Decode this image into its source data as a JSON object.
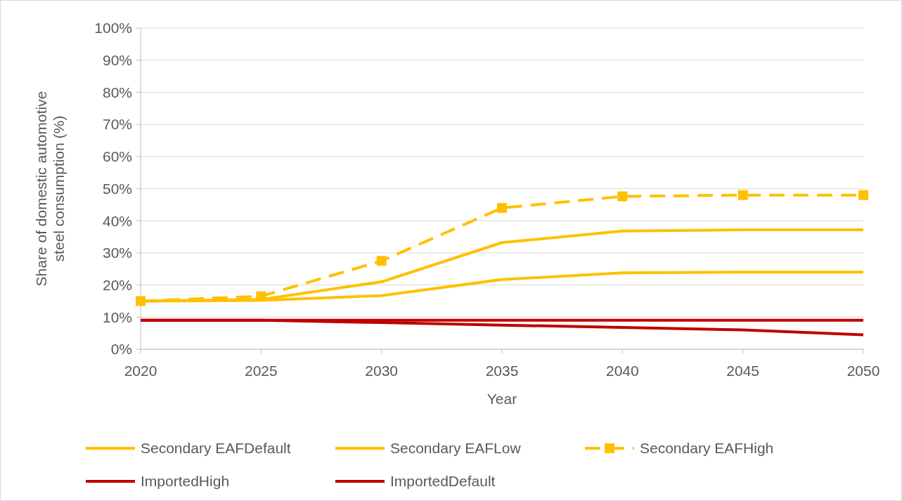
{
  "chart_data": {
    "type": "line",
    "xlabel": "Year",
    "ylabel": "Share of domestic automotive steel consumption (%)",
    "x": [
      2020,
      2025,
      2030,
      2035,
      2040,
      2045,
      2050
    ],
    "xlim": [
      2020,
      2050
    ],
    "xticks": [
      2020,
      2025,
      2030,
      2035,
      2040,
      2045,
      2050
    ],
    "ylim": [
      0,
      100
    ],
    "yticks": [
      {
        "value": 0,
        "label": "0%"
      },
      {
        "value": 10,
        "label": "10%"
      },
      {
        "value": 20,
        "label": "20%"
      },
      {
        "value": 30,
        "label": "30%"
      },
      {
        "value": 40,
        "label": "40%"
      },
      {
        "value": 50,
        "label": "50%"
      },
      {
        "value": 60,
        "label": "60%"
      },
      {
        "value": 70,
        "label": "70%"
      },
      {
        "value": 80,
        "label": "80%"
      },
      {
        "value": 90,
        "label": "90%"
      },
      {
        "value": 100,
        "label": "100%"
      }
    ],
    "grid": "y",
    "legend": "bottom",
    "series": [
      {
        "name": "Secondary EAFDefault",
        "color": "#ffc000",
        "values": [
          15,
          15.5,
          21,
          33.2,
          36.8,
          37.2,
          37.2
        ],
        "marker": "none",
        "line_style": "solid"
      },
      {
        "name": "Secondary EAFLow",
        "color": "#ffc000",
        "values": [
          15,
          15.2,
          16.7,
          21.7,
          23.8,
          24,
          24
        ],
        "marker": "none",
        "line_style": "solid"
      },
      {
        "name": "Secondary EAFHigh",
        "color": "#ffc000",
        "values": [
          15,
          16.5,
          27.5,
          44,
          47.6,
          48,
          48
        ],
        "marker": "square",
        "line_style": "dashed"
      },
      {
        "name": "ImportedHigh",
        "color": "#c00000",
        "values": [
          9,
          9,
          9,
          9,
          9,
          9,
          9
        ],
        "marker": "none",
        "line_style": "solid"
      },
      {
        "name": "ImportedDefault",
        "color": "#c00000",
        "values": [
          9,
          9,
          8.3,
          7.5,
          6.8,
          6,
          4.5
        ],
        "marker": "none",
        "line_style": "solid"
      }
    ]
  }
}
